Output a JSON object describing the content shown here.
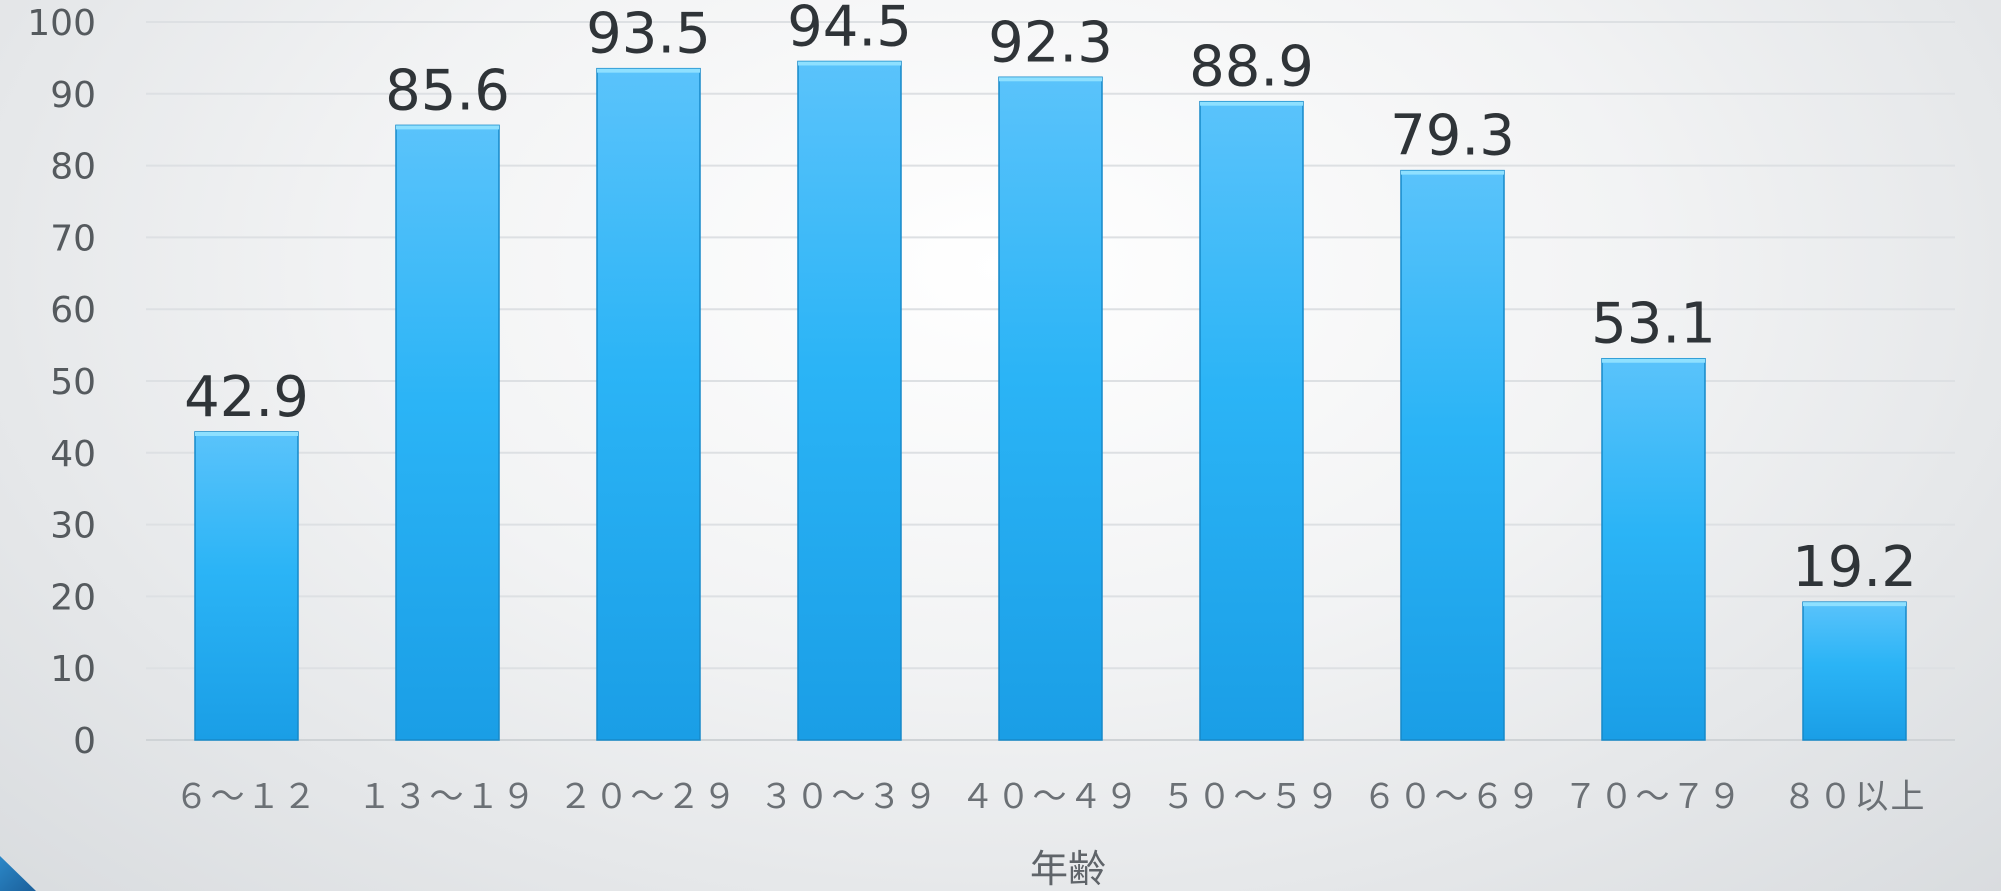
{
  "chart_data": {
    "type": "bar",
    "categories": [
      "６～１２",
      "１３～１９",
      "２０～２９",
      "３０～３９",
      "４０～４９",
      "５０～５９",
      "６０～６９",
      "７０～７９",
      "８０以上"
    ],
    "values": [
      42.9,
      85.6,
      93.5,
      94.5,
      92.3,
      88.9,
      79.3,
      53.1,
      19.2
    ],
    "value_labels": [
      "42.9",
      "85.6",
      "93.5",
      "94.5",
      "92.3",
      "88.9",
      "79.3",
      "53.1",
      "19.2"
    ],
    "title": "",
    "xlabel": "年齢",
    "ylabel": "",
    "ylim": [
      0,
      100
    ],
    "yticks": [
      "0",
      "10",
      "20",
      "30",
      "40",
      "50",
      "60",
      "70",
      "80",
      "90",
      "100"
    ],
    "grid": true,
    "legend": "none",
    "bar_color": "#29b3f5",
    "data_labels": true
  }
}
